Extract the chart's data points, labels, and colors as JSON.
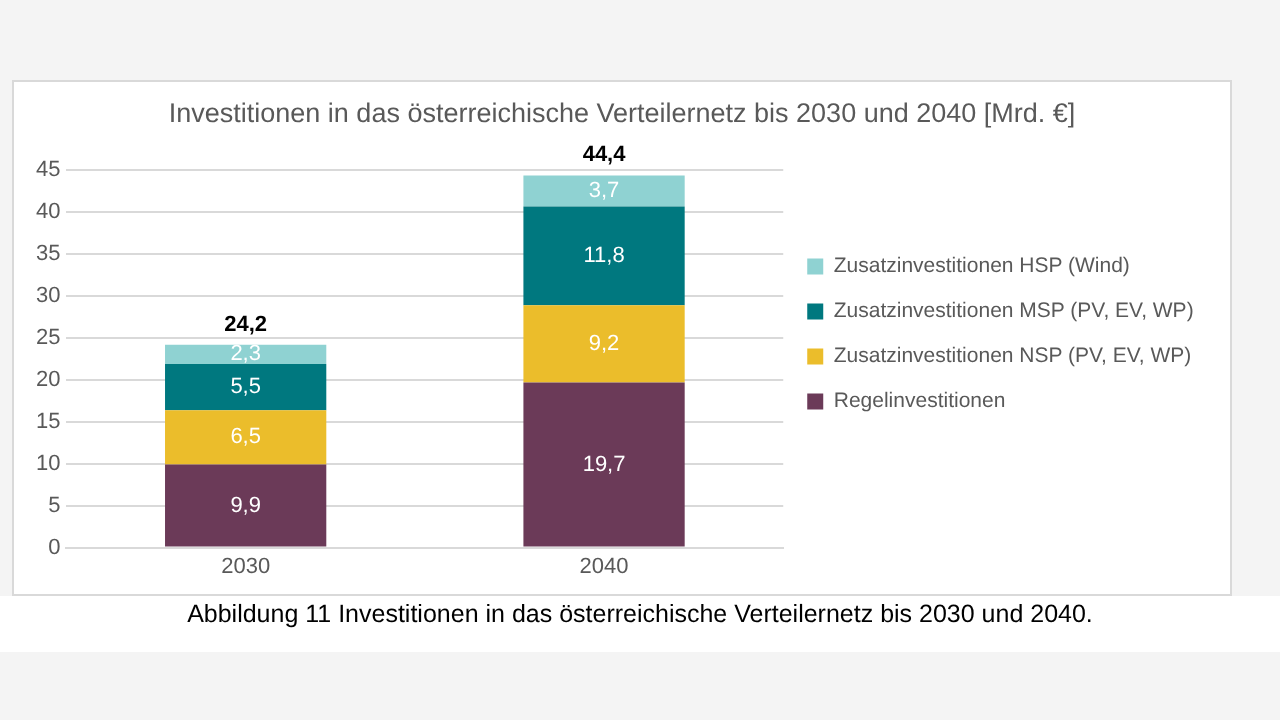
{
  "chart_data": {
    "type": "bar",
    "title": "Investitionen in das österreichische Verteilernetz bis 2030 und 2040 [Mrd. €]",
    "categories": [
      "2030",
      "2040"
    ],
    "stacked": true,
    "series": [
      {
        "name": "Regelinvestitionen",
        "color": "#6b3a58",
        "values": [
          9.9,
          19.7
        ],
        "value_labels": [
          "9,9",
          "19,7"
        ]
      },
      {
        "name": "Zusatzinvestitionen NSP (PV, EV, WP)",
        "color": "#ebbd2b",
        "values": [
          6.5,
          9.2
        ],
        "value_labels": [
          "6,5",
          "9,2"
        ]
      },
      {
        "name": "Zusatzinvestitionen MSP (PV, EV, WP)",
        "color": "#00787f",
        "values": [
          5.5,
          11.8
        ],
        "value_labels": [
          "5,5",
          "11,8"
        ]
      },
      {
        "name": "Zusatzinvestitionen HSP (Wind)",
        "color": "#8fd2d2",
        "values": [
          2.3,
          3.7
        ],
        "value_labels": [
          "2,3",
          "3,7"
        ]
      }
    ],
    "totals": [
      "24,2",
      "44,4"
    ],
    "ylim": [
      0,
      45
    ],
    "yticks": [
      0,
      5,
      10,
      15,
      20,
      25,
      30,
      35,
      40,
      45
    ],
    "grid": "y",
    "legend": "right",
    "annotations": [
      "Abbildung 11 Investitionen in das österreichische Verteilernetz bis 2030 und 2040."
    ]
  }
}
